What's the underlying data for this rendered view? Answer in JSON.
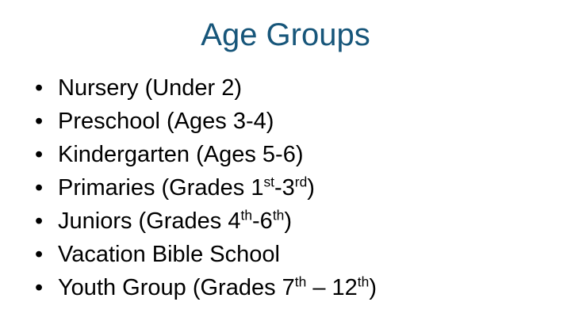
{
  "page": {
    "background_color": "#FFFFFF"
  },
  "title": {
    "text": "Age Groups",
    "color": "#17567A"
  },
  "list": {
    "bullet_glyph": "•",
    "text_color": "#000000",
    "items": [
      {
        "segments": [
          {
            "t": "Nursery (Under 2)"
          }
        ]
      },
      {
        "segments": [
          {
            "t": "Preschool (Ages 3-4)"
          }
        ]
      },
      {
        "segments": [
          {
            "t": "Kindergarten (Ages 5-6)"
          }
        ]
      },
      {
        "segments": [
          {
            "t": "Primaries (Grades 1"
          },
          {
            "t": "st",
            "sup": true
          },
          {
            "t": "-3"
          },
          {
            "t": "rd",
            "sup": true
          },
          {
            "t": ")"
          }
        ]
      },
      {
        "segments": [
          {
            "t": "Juniors (Grades 4"
          },
          {
            "t": "th",
            "sup": true
          },
          {
            "t": "-6"
          },
          {
            "t": "th",
            "sup": true
          },
          {
            "t": ")"
          }
        ]
      },
      {
        "segments": [
          {
            "t": "Vacation Bible School"
          }
        ]
      },
      {
        "segments": [
          {
            "t": "Youth Group (Grades 7"
          },
          {
            "t": "th",
            "sup": true
          },
          {
            "t": " – 12"
          },
          {
            "t": "th",
            "sup": true
          },
          {
            "t": ")"
          }
        ]
      }
    ]
  }
}
